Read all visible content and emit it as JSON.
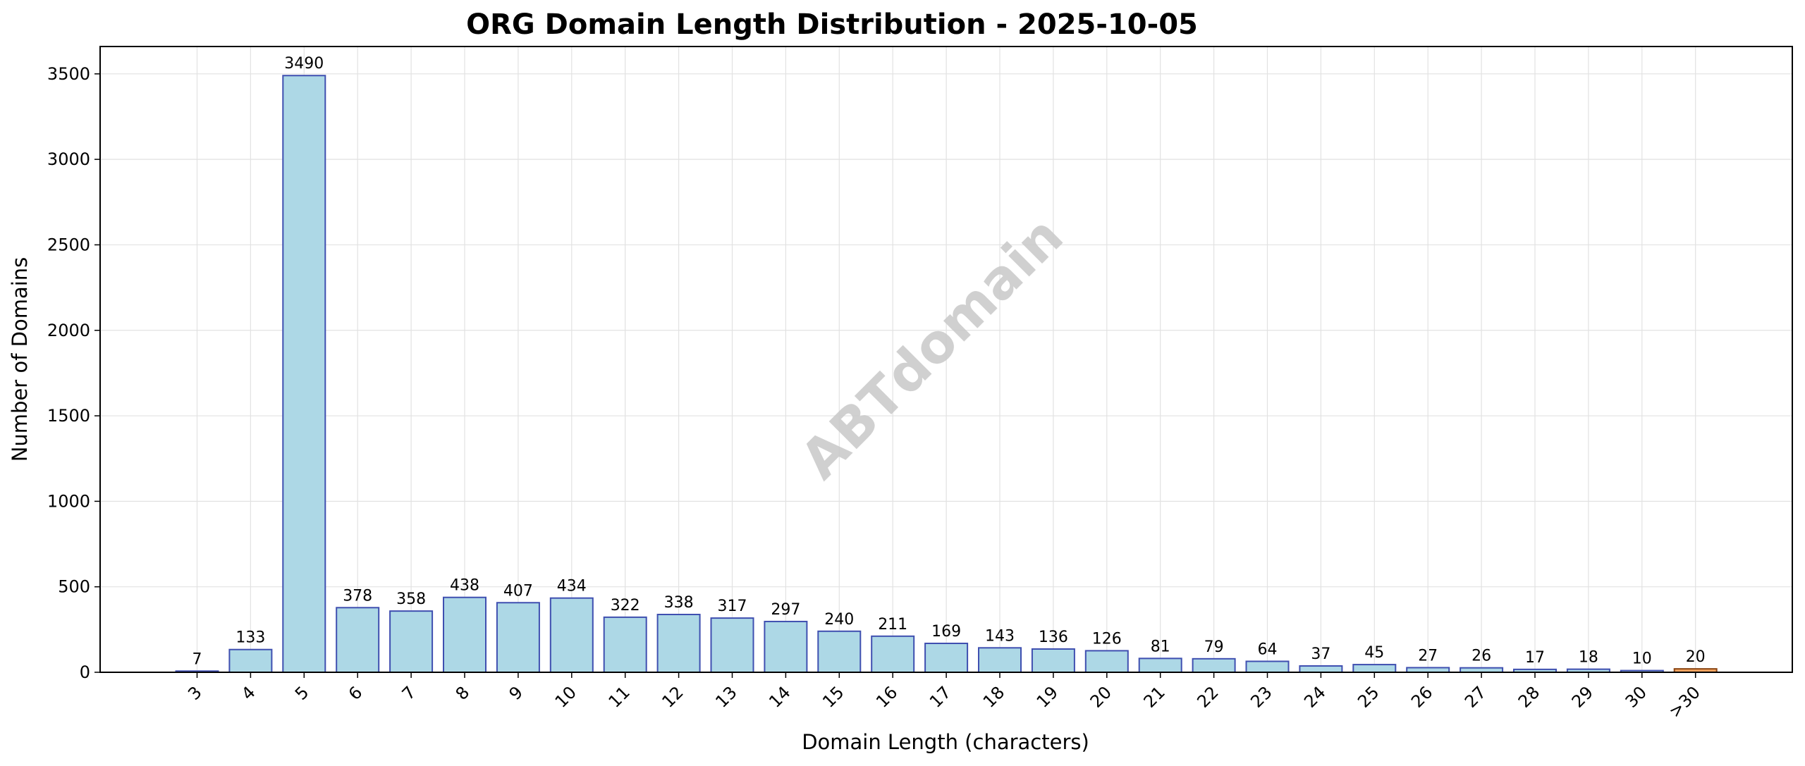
{
  "chart_data": {
    "type": "bar",
    "title": "ORG Domain Length Distribution - 2025-10-05",
    "xlabel": "Domain Length (characters)",
    "ylabel": "Number of Domains",
    "categories": [
      "3",
      "4",
      "5",
      "6",
      "7",
      "8",
      "9",
      "10",
      "11",
      "12",
      "13",
      "14",
      "15",
      "16",
      "17",
      "18",
      "19",
      "20",
      "21",
      "22",
      "23",
      "24",
      "25",
      "26",
      "27",
      "28",
      "29",
      "30",
      ">30"
    ],
    "values": [
      7,
      133,
      3490,
      378,
      358,
      438,
      407,
      434,
      322,
      338,
      317,
      297,
      240,
      211,
      169,
      143,
      136,
      126,
      81,
      79,
      64,
      37,
      45,
      27,
      26,
      17,
      18,
      10,
      20
    ],
    "ylim": [
      0,
      3660
    ],
    "yticks": [
      0,
      500,
      1000,
      1500,
      2000,
      2500,
      3000,
      3500
    ],
    "grid": true,
    "watermark": "ABTdomain",
    "colors": {
      "bar_fill": "#add8e6",
      "bar_edge": "#3f4fb0",
      "overflow_fill": "#f4a460",
      "overflow_edge": "#8b4513",
      "grid": "#e2e2e2",
      "axis": "#000000"
    }
  }
}
